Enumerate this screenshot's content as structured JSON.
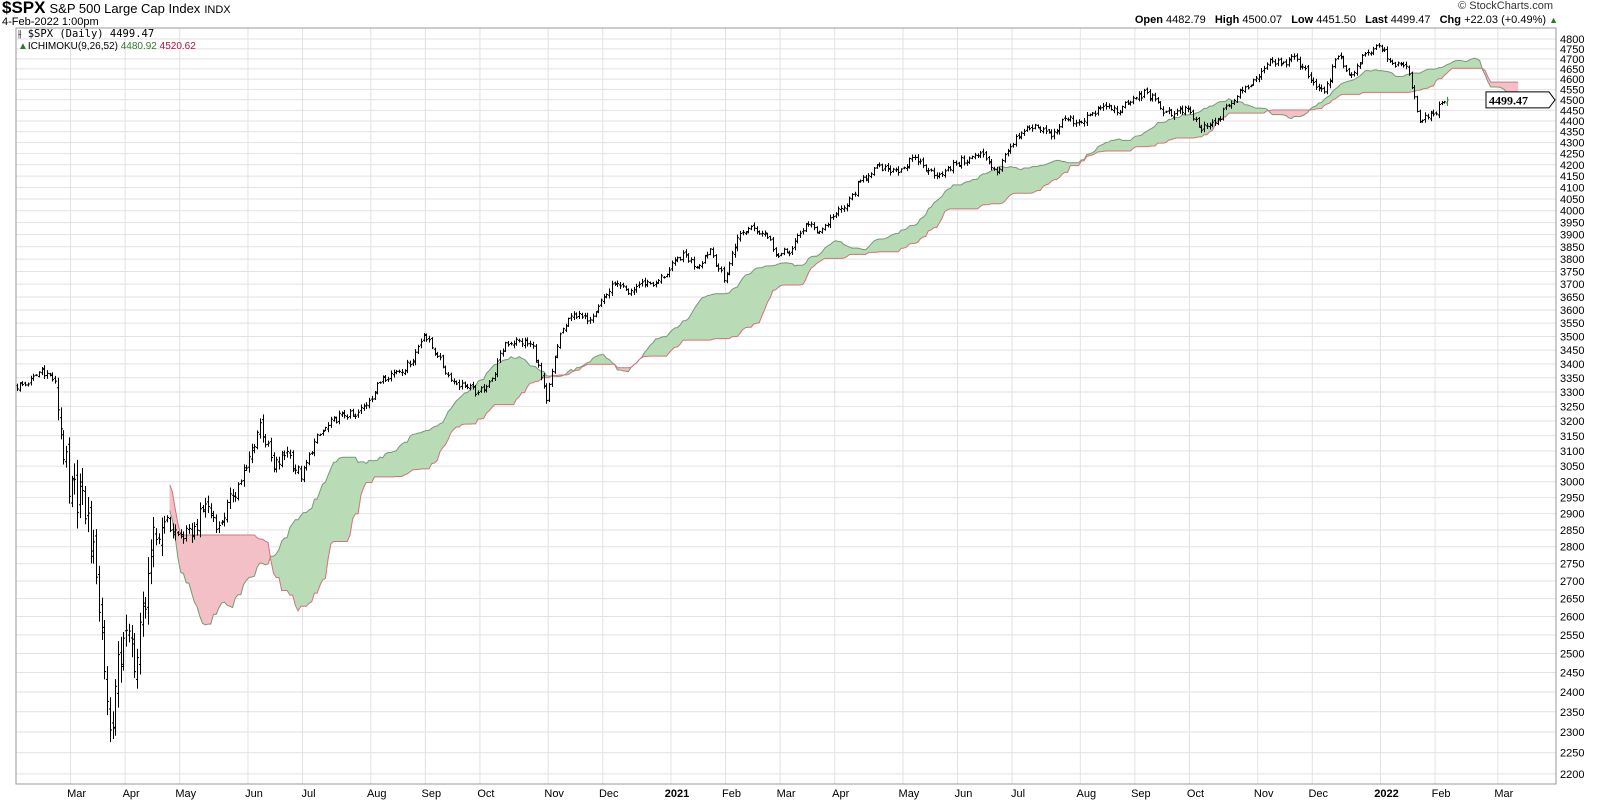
{
  "header": {
    "symbol": "$SPX",
    "name": "S&P 500 Large Cap Index",
    "exchange": "INDX",
    "date": "4-Feb-2022 1:00pm",
    "copyright": "© StockCharts.com",
    "open_label": "Open",
    "open": "4482.79",
    "high_label": "High",
    "high": "4500.07",
    "low_label": "Low",
    "low": "4451.50",
    "last_label": "Last",
    "last": "4499.47",
    "chg_label": "Chg",
    "chg": "+22.03 (+0.49%)",
    "chg_arrow": "▲"
  },
  "legend": {
    "price": "$SPX (Daily) 4499.47",
    "ichimoku": "ICHIMOKU(9,26,52)",
    "ichimoku_a": "4480.92",
    "ichimoku_b": "4520.62"
  },
  "colors": {
    "bar": "#000000",
    "last_bar": "#2b9a2b",
    "cloud_up": "#b9dcb6",
    "cloud_down": "#f3c0c8",
    "span_a": "#6f9f6f",
    "span_b": "#d9707f",
    "grid": "#e2e2e2"
  },
  "chart_data": {
    "type": "ohlc",
    "title": "$SPX S&P 500 Large Cap Index",
    "scale": "log",
    "ylim": [
      2200,
      4800
    ],
    "ytick_step": 50,
    "ichimoku_params": [
      9,
      26,
      52
    ],
    "last_value_label": "4499.47",
    "x_labels": [
      "Mar",
      "Apr",
      "May",
      "Jun",
      "Jul",
      "Aug",
      "Sep",
      "Oct",
      "Nov",
      "Dec",
      "2021",
      "Feb",
      "Mar",
      "Apr",
      "May",
      "Jun",
      "Jul",
      "Aug",
      "Sep",
      "Oct",
      "Nov",
      "Dec",
      "2022",
      "Feb",
      "Mar"
    ],
    "weekly_closes": [
      [
        "2020-02-07",
        3328
      ],
      [
        "2020-02-14",
        3380
      ],
      [
        "2020-02-21",
        3338
      ],
      [
        "2020-02-28",
        2954
      ],
      [
        "2020-03-06",
        2972
      ],
      [
        "2020-03-13",
        2711
      ],
      [
        "2020-03-20",
        2305
      ],
      [
        "2020-03-27",
        2541
      ],
      [
        "2020-04-03",
        2489
      ],
      [
        "2020-04-09",
        2790
      ],
      [
        "2020-04-17",
        2875
      ],
      [
        "2020-04-24",
        2837
      ],
      [
        "2020-05-01",
        2831
      ],
      [
        "2020-05-08",
        2930
      ],
      [
        "2020-05-15",
        2864
      ],
      [
        "2020-05-22",
        2955
      ],
      [
        "2020-05-29",
        3044
      ],
      [
        "2020-06-05",
        3194
      ],
      [
        "2020-06-12",
        3041
      ],
      [
        "2020-06-19",
        3098
      ],
      [
        "2020-06-26",
        3009
      ],
      [
        "2020-07-02",
        3130
      ],
      [
        "2020-07-10",
        3185
      ],
      [
        "2020-07-17",
        3225
      ],
      [
        "2020-07-24",
        3216
      ],
      [
        "2020-07-31",
        3271
      ],
      [
        "2020-08-07",
        3351
      ],
      [
        "2020-08-14",
        3373
      ],
      [
        "2020-08-21",
        3397
      ],
      [
        "2020-08-28",
        3508
      ],
      [
        "2020-09-04",
        3427
      ],
      [
        "2020-09-11",
        3341
      ],
      [
        "2020-09-18",
        3319
      ],
      [
        "2020-09-25",
        3298
      ],
      [
        "2020-10-02",
        3348
      ],
      [
        "2020-10-09",
        3477
      ],
      [
        "2020-10-16",
        3484
      ],
      [
        "2020-10-23",
        3465
      ],
      [
        "2020-10-30",
        3270
      ],
      [
        "2020-11-06",
        3510
      ],
      [
        "2020-11-13",
        3585
      ],
      [
        "2020-11-20",
        3558
      ],
      [
        "2020-11-27",
        3638
      ],
      [
        "2020-12-04",
        3699
      ],
      [
        "2020-12-11",
        3663
      ],
      [
        "2020-12-18",
        3709
      ],
      [
        "2020-12-24",
        3703
      ],
      [
        "2020-12-31",
        3756
      ],
      [
        "2021-01-08",
        3825
      ],
      [
        "2021-01-15",
        3768
      ],
      [
        "2021-01-22",
        3841
      ],
      [
        "2021-01-29",
        3714
      ],
      [
        "2021-02-05",
        3887
      ],
      [
        "2021-02-12",
        3934
      ],
      [
        "2021-02-19",
        3907
      ],
      [
        "2021-02-26",
        3811
      ],
      [
        "2021-03-05",
        3842
      ],
      [
        "2021-03-12",
        3943
      ],
      [
        "2021-03-19",
        3913
      ],
      [
        "2021-03-26",
        3975
      ],
      [
        "2021-04-01",
        4020
      ],
      [
        "2021-04-09",
        4129
      ],
      [
        "2021-04-16",
        4185
      ],
      [
        "2021-04-23",
        4180
      ],
      [
        "2021-04-30",
        4181
      ],
      [
        "2021-05-07",
        4233
      ],
      [
        "2021-05-14",
        4174
      ],
      [
        "2021-05-21",
        4156
      ],
      [
        "2021-05-28",
        4204
      ],
      [
        "2021-06-04",
        4230
      ],
      [
        "2021-06-11",
        4247
      ],
      [
        "2021-06-18",
        4166
      ],
      [
        "2021-06-25",
        4281
      ],
      [
        "2021-07-02",
        4352
      ],
      [
        "2021-07-09",
        4370
      ],
      [
        "2021-07-16",
        4327
      ],
      [
        "2021-07-23",
        4412
      ],
      [
        "2021-07-30",
        4395
      ],
      [
        "2021-08-06",
        4437
      ],
      [
        "2021-08-13",
        4468
      ],
      [
        "2021-08-20",
        4442
      ],
      [
        "2021-08-27",
        4509
      ],
      [
        "2021-09-03",
        4535
      ],
      [
        "2021-09-10",
        4459
      ],
      [
        "2021-09-17",
        4433
      ],
      [
        "2021-09-24",
        4455
      ],
      [
        "2021-10-01",
        4357
      ],
      [
        "2021-10-08",
        4391
      ],
      [
        "2021-10-15",
        4471
      ],
      [
        "2021-10-22",
        4545
      ],
      [
        "2021-10-29",
        4605
      ],
      [
        "2021-11-05",
        4697
      ],
      [
        "2021-11-12",
        4683
      ],
      [
        "2021-11-19",
        4698
      ],
      [
        "2021-11-26",
        4595
      ],
      [
        "2021-12-03",
        4538
      ],
      [
        "2021-12-10",
        4712
      ],
      [
        "2021-12-17",
        4621
      ],
      [
        "2021-12-23",
        4726
      ],
      [
        "2021-12-31",
        4766
      ],
      [
        "2022-01-07",
        4677
      ],
      [
        "2022-01-14",
        4663
      ],
      [
        "2022-01-21",
        4398
      ],
      [
        "2022-01-28",
        4432
      ],
      [
        "2022-02-04",
        4499.47
      ]
    ]
  }
}
